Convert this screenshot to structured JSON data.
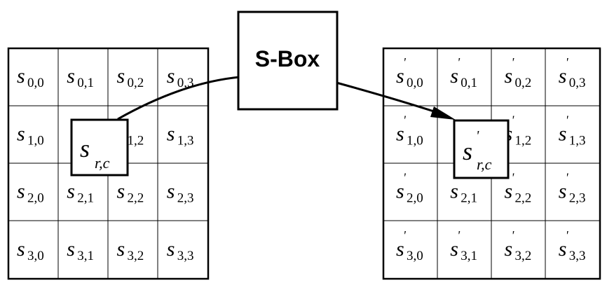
{
  "sbox_label": "S-Box",
  "input_state": {
    "letter": "s",
    "prime": false,
    "cells": [
      [
        "0,0",
        "0,1",
        "0,2",
        "0,3"
      ],
      [
        "1,0",
        "",
        "1,2",
        "1,3"
      ],
      [
        "2,0",
        "2,1",
        "2,2",
        "2,3"
      ],
      [
        "3,0",
        "3,1",
        "3,2",
        "3,3"
      ]
    ],
    "highlight": {
      "letter": "s",
      "subscript": "r,c"
    }
  },
  "output_state": {
    "letter": "s",
    "prime": true,
    "cells": [
      [
        "0,0",
        "0,1",
        "0,2",
        "0,3"
      ],
      [
        "1,0",
        "",
        "1,2",
        "1,3"
      ],
      [
        "2,0",
        "2,1",
        "2,2",
        "2,3"
      ],
      [
        "3,0",
        "3,1",
        "3,2",
        "3,3"
      ]
    ],
    "highlight": {
      "letter": "s",
      "subscript": "r,c"
    }
  }
}
